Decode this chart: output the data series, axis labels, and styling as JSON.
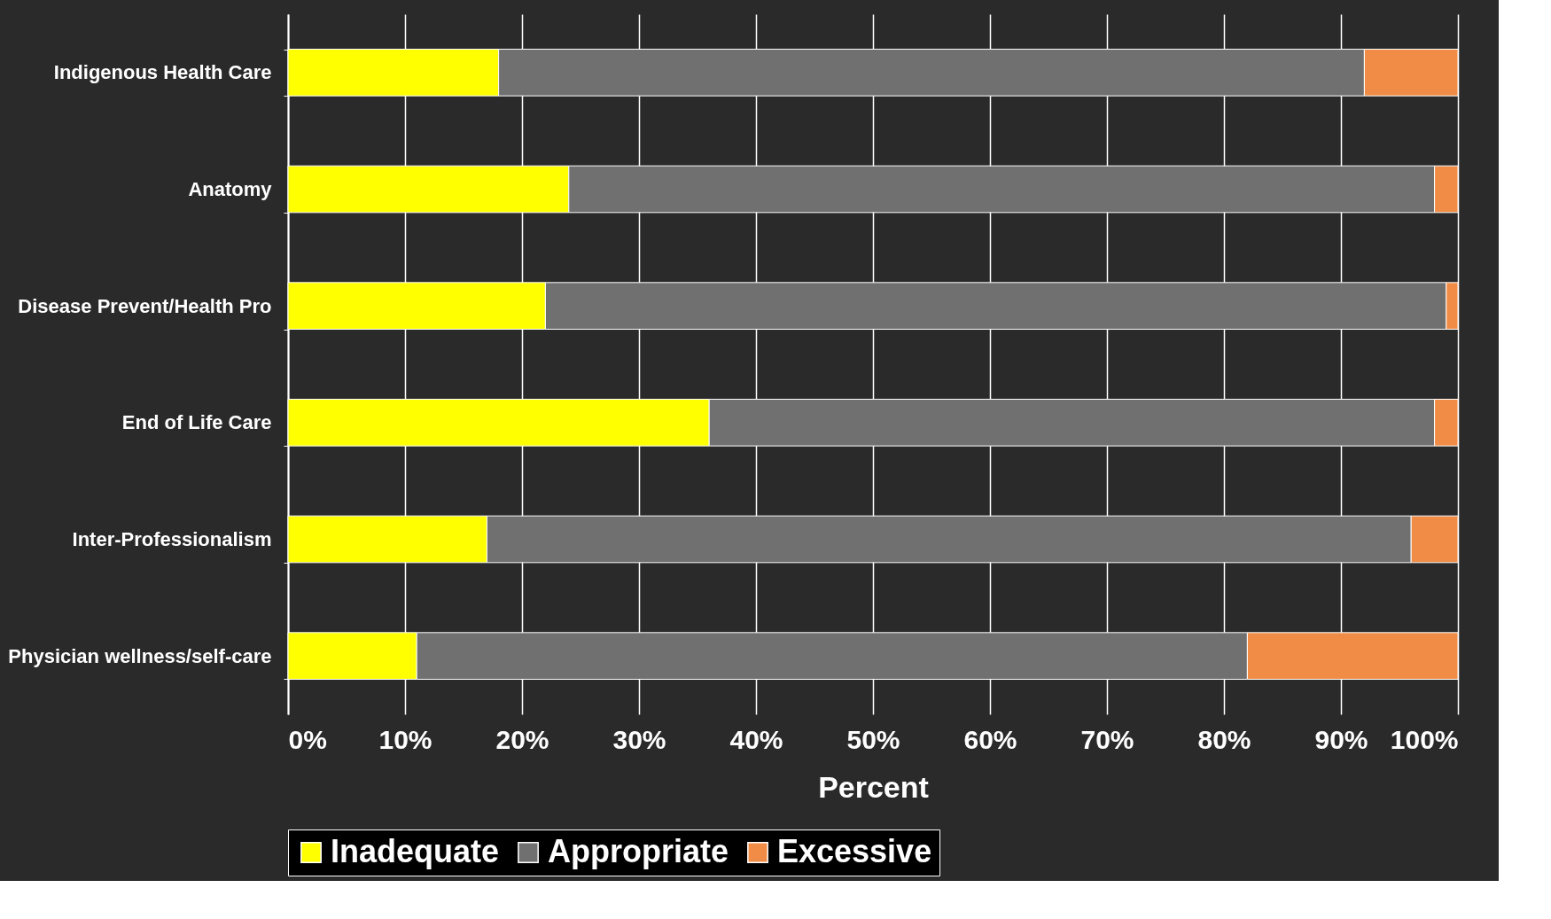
{
  "chart_data": {
    "type": "bar",
    "orientation": "horizontal",
    "stacked": true,
    "xlabel": "Percent",
    "categories": [
      "Indigenous Health Care",
      "Anatomy",
      "Disease Prevent/Health Pro",
      "End of Life Care",
      "Inter-Professionalism",
      "Physician wellness/self-care"
    ],
    "series": [
      {
        "name": "Inadequate",
        "color": "#ffff00",
        "values": [
          18,
          24,
          22,
          36,
          17,
          11
        ]
      },
      {
        "name": "Appropriate",
        "color": "#707070",
        "values": [
          74,
          74,
          77,
          62,
          79,
          71
        ]
      },
      {
        "name": "Excessive",
        "color": "#f08c46",
        "values": [
          8,
          2,
          1,
          2,
          4,
          18
        ]
      }
    ],
    "xlim": [
      0,
      100
    ],
    "xticks": [
      {
        "value": 0,
        "label": "0%"
      },
      {
        "value": 10,
        "label": "10%"
      },
      {
        "value": 20,
        "label": "20%"
      },
      {
        "value": 30,
        "label": "30%"
      },
      {
        "value": 40,
        "label": "40%"
      },
      {
        "value": 50,
        "label": "50%"
      },
      {
        "value": 60,
        "label": "60%"
      },
      {
        "value": 70,
        "label": "70%"
      },
      {
        "value": 80,
        "label": "80%"
      },
      {
        "value": 90,
        "label": "90%"
      },
      {
        "value": 100,
        "label": "100%"
      }
    ],
    "grid": "x",
    "legend": "bottom"
  }
}
